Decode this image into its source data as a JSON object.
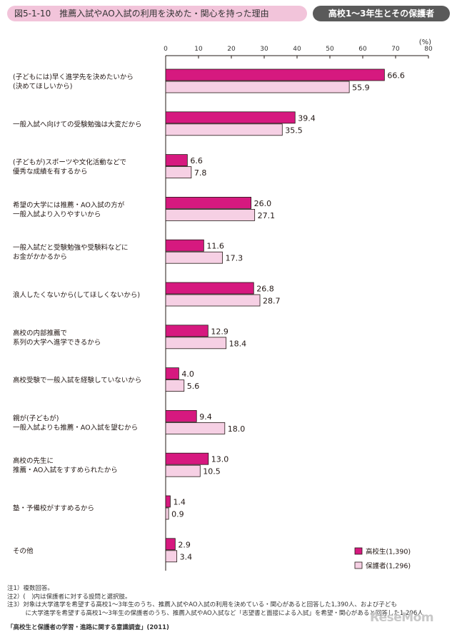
{
  "header": {
    "title": "図5-1-10　推薦入試やAO入試の利用を決めた・関心を持った理由",
    "badge": "高校1～3年生とその保護者"
  },
  "chart_data": {
    "type": "bar",
    "orientation": "horizontal",
    "unit": "(%)",
    "xlim": [
      0,
      80
    ],
    "ticks": [
      0,
      10,
      20,
      30,
      40,
      50,
      60,
      70,
      80
    ],
    "categories": [
      [
        "(子どもには)早く進学先を決めたいから",
        "(決めてほしいから)"
      ],
      [
        "一般入試へ向けての受験勉強は大変だから"
      ],
      [
        "(子どもが)スポーツや文化活動などで",
        "優秀な成績を有するから"
      ],
      [
        "希望の大学には推薦・AO入試の方が",
        "一般入試より入りやすいから"
      ],
      [
        "一般入試だと受験勉強や受験料などに",
        "お金がかかるから"
      ],
      [
        "浪人したくないから(してほしくないから)"
      ],
      [
        "高校の内部推薦で",
        "系列の大学へ進学できるから"
      ],
      [
        "高校受験で一般入試を経験していないから"
      ],
      [
        "親が(子どもが)",
        "一般入試よりも推薦・AO入試を望むから"
      ],
      [
        "高校の先生に",
        "推薦・AO入試をすすめられたから"
      ],
      [
        "塾・予備校がすすめるから"
      ],
      [
        "その他"
      ]
    ],
    "series": [
      {
        "name": "高校生(1,390)",
        "color": "#d6197f",
        "values": [
          66.6,
          39.4,
          6.6,
          26.0,
          11.6,
          26.8,
          12.9,
          4.0,
          9.4,
          13.0,
          1.4,
          2.9
        ]
      },
      {
        "name": "保護者(1,296)",
        "color": "#f6d0e4",
        "values": [
          55.9,
          35.5,
          7.8,
          27.1,
          17.3,
          28.7,
          18.4,
          5.6,
          18.0,
          10.5,
          0.9,
          3.4
        ]
      }
    ],
    "legend_position": "bottom-right"
  },
  "notes": [
    "注1）複数回答。",
    "注2）(　)内は保護者に対する設問と選択肢。",
    "注3）対象は大学進学を希望する高校1～3年生のうち、推薦入試やAO入試の利用を決めている・関心があると回答した1,390人、および子ども",
    "　　　に大学進学を希望する高校1～3年生の保護者のうち、推薦入試やAO入試など「志望書と面接による入試」を希望・関心があると回答した1,296人"
  ],
  "source": "「高校生と保護者の学習・進路に関する意識調査」(2011)",
  "watermark": "ReseMom"
}
